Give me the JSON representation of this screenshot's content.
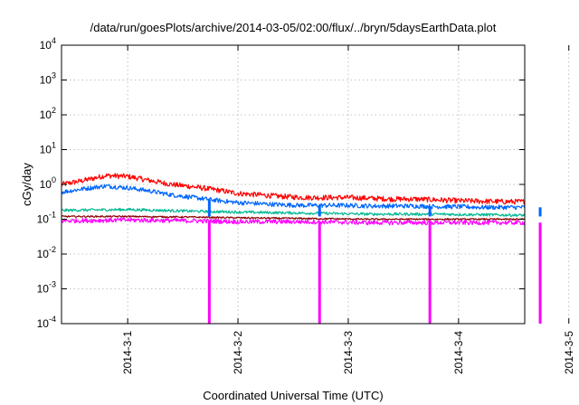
{
  "chart_data": {
    "type": "line",
    "title": "/data/run/goesPlots/archive/2014-03-05/02:00/flux/../bryn/5daysEarthData.plot",
    "xlabel": "Coordinated Universal Time (UTC)",
    "ylabel": "cGy/day",
    "yscale": "log",
    "ylim": [
      0.0001,
      10000
    ],
    "xlim": [
      -1.6,
      2.6
    ],
    "grid": true,
    "x_ticks": [
      {
        "value": -1,
        "label": "2014-3-1"
      },
      {
        "value": 0,
        "label": "2014-3-2"
      },
      {
        "value": 1,
        "label": "2014-3-3"
      },
      {
        "value": 2,
        "label": "2014-3-4"
      },
      {
        "value": 3,
        "label": "2014-3-5"
      }
    ],
    "y_ticks": [
      {
        "value": 0.0001,
        "base": "10",
        "exp": "-4"
      },
      {
        "value": 0.001,
        "base": "10",
        "exp": "-3"
      },
      {
        "value": 0.01,
        "base": "10",
        "exp": "-2"
      },
      {
        "value": 0.1,
        "base": "10",
        "exp": "-1"
      },
      {
        "value": 1,
        "base": "10",
        "exp": "0"
      },
      {
        "value": 10,
        "base": "10",
        "exp": "1"
      },
      {
        "value": 100,
        "base": "10",
        "exp": "2"
      },
      {
        "value": 1000,
        "base": "10",
        "exp": "3"
      },
      {
        "value": 10000,
        "base": "10",
        "exp": "4"
      }
    ],
    "dropouts_x": [
      -0.26,
      0.74,
      1.74,
      2.74
    ],
    "series": [
      {
        "color": "#ff0000",
        "x": [
          -1.6,
          -1.4,
          -1.2,
          -1.0,
          -0.8,
          -0.6,
          -0.4,
          -0.2,
          0.0,
          0.2,
          0.4,
          0.6,
          0.8,
          1.0,
          1.2,
          1.4,
          1.6,
          1.8,
          2.0,
          2.2,
          2.4,
          2.6
        ],
        "y": [
          1.0,
          1.3,
          1.8,
          1.7,
          1.3,
          1.0,
          0.85,
          0.7,
          0.55,
          0.5,
          0.45,
          0.42,
          0.42,
          0.42,
          0.4,
          0.38,
          0.38,
          0.36,
          0.34,
          0.33,
          0.32,
          0.32
        ],
        "noise": 0.35,
        "dropout": false
      },
      {
        "color": "#0066ff",
        "x": [
          -1.6,
          -1.4,
          -1.2,
          -1.0,
          -0.8,
          -0.6,
          -0.4,
          -0.2,
          0.0,
          0.2,
          0.4,
          0.6,
          0.8,
          1.0,
          1.2,
          1.4,
          1.6,
          1.8,
          2.0,
          2.2,
          2.4,
          2.6
        ],
        "y": [
          0.6,
          0.75,
          0.9,
          0.8,
          0.65,
          0.5,
          0.42,
          0.35,
          0.3,
          0.28,
          0.26,
          0.25,
          0.25,
          0.25,
          0.24,
          0.24,
          0.24,
          0.23,
          0.23,
          0.22,
          0.22,
          0.22
        ],
        "noise": 0.3,
        "dropout": false
      },
      {
        "color": "#00b894",
        "x": [
          -1.6,
          -1.0,
          -0.4,
          0.0,
          0.6,
          1.2,
          1.8,
          2.6
        ],
        "y": [
          0.18,
          0.19,
          0.17,
          0.16,
          0.15,
          0.14,
          0.14,
          0.13
        ],
        "noise": 0.18,
        "dropout": false
      },
      {
        "color": "#8b0000",
        "x": [
          -1.6,
          -1.0,
          -0.4,
          0.0,
          0.6,
          1.2,
          1.8,
          2.6
        ],
        "y": [
          0.12,
          0.12,
          0.115,
          0.11,
          0.105,
          0.1,
          0.1,
          0.1
        ],
        "noise": 0.1,
        "dropout": false
      },
      {
        "color": "#ff00ff",
        "x": [
          -1.6,
          -1.0,
          -0.4,
          0.0,
          0.6,
          1.2,
          1.8,
          2.6
        ],
        "y": [
          0.09,
          0.095,
          0.09,
          0.085,
          0.085,
          0.08,
          0.08,
          0.08
        ],
        "noise": 0.3,
        "dropout": true
      }
    ]
  }
}
